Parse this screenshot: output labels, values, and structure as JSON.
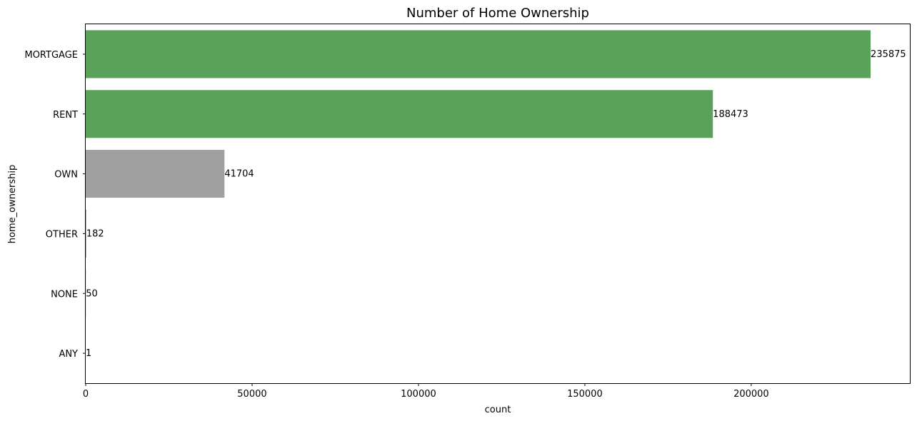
{
  "chart_data": {
    "type": "bar",
    "orientation": "horizontal",
    "title": "Number of Home Ownership",
    "xlabel": "count",
    "ylabel": "home_ownership",
    "categories": [
      "MORTGAGE",
      "RENT",
      "OWN",
      "OTHER",
      "NONE",
      "ANY"
    ],
    "values": [
      235875,
      188473,
      41704,
      182,
      50,
      1
    ],
    "data_labels": [
      "235875",
      "188473",
      "41704",
      "182",
      "50",
      "1"
    ],
    "bar_colors": [
      "#5aa25a",
      "#5aa25a",
      "#a0a0a0",
      "#a0a0a0",
      "#a0a0a0",
      "#a0a0a0"
    ],
    "xlim": [
      0,
      247668
    ],
    "xticks": [
      0,
      50000,
      100000,
      150000,
      200000
    ],
    "xtick_labels": [
      "0",
      "50000",
      "100000",
      "150000",
      "200000"
    ],
    "grid": false,
    "legend": "none"
  }
}
